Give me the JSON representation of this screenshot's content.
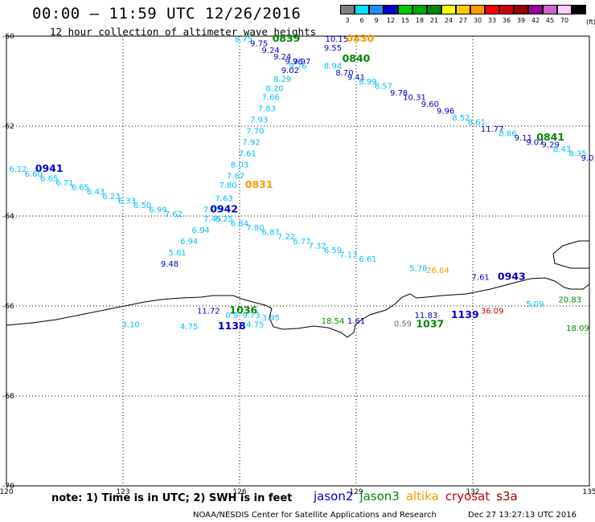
{
  "header": {
    "title": "00:00 – 11:59 UTC 12/26/2016",
    "subtitle": "12 hour collection of altimeter wave heights"
  },
  "colorbar": {
    "labels": [
      "3",
      "6",
      "9",
      "12",
      "15",
      "18",
      "21",
      "24",
      "27",
      "30",
      "33",
      "36",
      "39",
      "42",
      "45",
      "70"
    ],
    "colors": [
      "#7f7f7f",
      "#00e5ff",
      "#1e90ff",
      "#0000cd",
      "#00cc00",
      "#00aa00",
      "#008800",
      "#ffff00",
      "#ffcc00",
      "#ff9900",
      "#ff0000",
      "#cc0000",
      "#990000",
      "#990099",
      "#cc66cc",
      "#ffccff",
      "#000000"
    ],
    "unit": "(ft)"
  },
  "map": {
    "lat_ticks": [
      "-60",
      "-62",
      "-64",
      "-66",
      "-68",
      "-70"
    ],
    "lon_ticks": [
      "120",
      "123",
      "126",
      "129",
      "132",
      "135"
    ],
    "lon_range": [
      120,
      135
    ],
    "lat_range": [
      -60,
      -70
    ]
  },
  "tracks": [
    {
      "text": "8.75",
      "c": "c",
      "lon": 126.1,
      "lat": -60.05
    },
    {
      "text": "0839",
      "c": "g3",
      "lon": 127.2,
      "lat": -60.05,
      "bold": true
    },
    {
      "text": "9.75",
      "c": "b",
      "lon": 126.5,
      "lat": -60.15
    },
    {
      "text": "9.24",
      "c": "b",
      "lon": 126.8,
      "lat": -60.3
    },
    {
      "text": "9.24",
      "c": "b",
      "lon": 127.1,
      "lat": -60.45
    },
    {
      "text": "9.76",
      "c": "b",
      "lon": 127.4,
      "lat": -60.55
    },
    {
      "text": "9.97",
      "c": "b",
      "lon": 127.6,
      "lat": -60.55
    },
    {
      "text": "9.76",
      "c": "c",
      "lon": 127.5,
      "lat": -60.65
    },
    {
      "text": "9.02",
      "c": "b",
      "lon": 127.3,
      "lat": -60.75
    },
    {
      "text": "8.29",
      "c": "c",
      "lon": 127.1,
      "lat": -60.95
    },
    {
      "text": "8.20",
      "c": "c",
      "lon": 126.9,
      "lat": -61.15
    },
    {
      "text": "7.66",
      "c": "c",
      "lon": 126.8,
      "lat": -61.35
    },
    {
      "text": "7.83",
      "c": "c",
      "lon": 126.7,
      "lat": -61.6
    },
    {
      "text": "7.93",
      "c": "c",
      "lon": 126.5,
      "lat": -61.85
    },
    {
      "text": "7.70",
      "c": "c",
      "lon": 126.4,
      "lat": -62.1
    },
    {
      "text": "7.92",
      "c": "c",
      "lon": 126.3,
      "lat": -62.35
    },
    {
      "text": "7.61",
      "c": "c",
      "lon": 126.2,
      "lat": -62.6
    },
    {
      "text": "8.03",
      "c": "c",
      "lon": 126.0,
      "lat": -62.85
    },
    {
      "text": "7.67",
      "c": "c",
      "lon": 125.9,
      "lat": -63.1
    },
    {
      "text": "7.80",
      "c": "c",
      "lon": 125.7,
      "lat": -63.3
    },
    {
      "text": "0831",
      "c": "al",
      "lon": 126.5,
      "lat": -63.3,
      "bold": true
    },
    {
      "text": "7.63",
      "c": "c",
      "lon": 125.6,
      "lat": -63.6
    },
    {
      "text": "7.95",
      "c": "c",
      "lon": 125.3,
      "lat": -63.85
    },
    {
      "text": "0942",
      "c": "b",
      "lon": 125.6,
      "lat": -63.85,
      "bold": true
    },
    {
      "text": "7.45",
      "c": "c",
      "lon": 125.3,
      "lat": -64.05
    },
    {
      "text": "6.25",
      "c": "c",
      "lon": 125.6,
      "lat": -64.05
    },
    {
      "text": "6.94",
      "c": "c",
      "lon": 125.0,
      "lat": -64.3
    },
    {
      "text": "6.94",
      "c": "c",
      "lon": 124.7,
      "lat": -64.55
    },
    {
      "text": "5.61",
      "c": "c",
      "lon": 124.4,
      "lat": -64.8
    },
    {
      "text": "9.48",
      "c": "b",
      "lon": 124.2,
      "lat": -65.05
    },
    {
      "text": "10.15",
      "c": "b",
      "lon": 128.5,
      "lat": -60.05
    },
    {
      "text": "0830",
      "c": "al",
      "lon": 129.1,
      "lat": -60.05,
      "bold": true
    },
    {
      "text": "9.55",
      "c": "b",
      "lon": 128.4,
      "lat": -60.25
    },
    {
      "text": "0840",
      "c": "g3",
      "lon": 129.0,
      "lat": -60.5,
      "bold": true
    },
    {
      "text": "8.94",
      "c": "c",
      "lon": 128.4,
      "lat": -60.65
    },
    {
      "text": "8.70",
      "c": "b",
      "lon": 128.7,
      "lat": -60.8
    },
    {
      "text": "9.41",
      "c": "b",
      "lon": 129.0,
      "lat": -60.9
    },
    {
      "text": "8.99",
      "c": "c",
      "lon": 129.3,
      "lat": -61.0
    },
    {
      "text": "8.57",
      "c": "c",
      "lon": 129.7,
      "lat": -61.1
    },
    {
      "text": "9.78",
      "c": "b",
      "lon": 130.1,
      "lat": -61.25
    },
    {
      "text": "10.31",
      "c": "b",
      "lon": 130.5,
      "lat": -61.35
    },
    {
      "text": "9.60",
      "c": "b",
      "lon": 130.9,
      "lat": -61.5
    },
    {
      "text": "9.96",
      "c": "b",
      "lon": 131.3,
      "lat": -61.65
    },
    {
      "text": "8.52",
      "c": "c",
      "lon": 131.7,
      "lat": -61.8
    },
    {
      "text": "8.61",
      "c": "c",
      "lon": 132.1,
      "lat": -61.9
    },
    {
      "text": "11.77",
      "c": "b",
      "lon": 132.5,
      "lat": -62.05
    },
    {
      "text": "8.66",
      "c": "c",
      "lon": 132.9,
      "lat": -62.15
    },
    {
      "text": "9.11",
      "c": "b",
      "lon": 133.3,
      "lat": -62.25
    },
    {
      "text": "9.07",
      "c": "b",
      "lon": 133.6,
      "lat": -62.35
    },
    {
      "text": "0841",
      "c": "g3",
      "lon": 134.0,
      "lat": -62.25,
      "bold": true
    },
    {
      "text": "9.29",
      "c": "b",
      "lon": 134.0,
      "lat": -62.4
    },
    {
      "text": "8.43",
      "c": "c",
      "lon": 134.3,
      "lat": -62.5
    },
    {
      "text": "8.35",
      "c": "c",
      "lon": 134.7,
      "lat": -62.6
    },
    {
      "text": "9.0",
      "c": "b",
      "lon": 134.95,
      "lat": -62.7
    },
    {
      "text": "6.12",
      "c": "c",
      "lon": 120.3,
      "lat": -62.95
    },
    {
      "text": "0941",
      "c": "b",
      "lon": 121.1,
      "lat": -62.95,
      "bold": true
    },
    {
      "text": "6.60",
      "c": "c",
      "lon": 120.7,
      "lat": -63.05
    },
    {
      "text": "6.65",
      "c": "c",
      "lon": 121.1,
      "lat": -63.15
    },
    {
      "text": "6.71",
      "c": "c",
      "lon": 121.5,
      "lat": -63.25
    },
    {
      "text": "6.65",
      "c": "c",
      "lon": 121.9,
      "lat": -63.35
    },
    {
      "text": "6.43",
      "c": "c",
      "lon": 122.3,
      "lat": -63.45
    },
    {
      "text": "6.23",
      "c": "c",
      "lon": 122.7,
      "lat": -63.55
    },
    {
      "text": "6.33",
      "c": "c",
      "lon": 123.1,
      "lat": -63.65
    },
    {
      "text": "6.50",
      "c": "c",
      "lon": 123.5,
      "lat": -63.75
    },
    {
      "text": "6.99",
      "c": "c",
      "lon": 123.9,
      "lat": -63.85
    },
    {
      "text": "7.62",
      "c": "c",
      "lon": 124.3,
      "lat": -63.95
    },
    {
      "text": "6.84",
      "c": "c",
      "lon": 126.0,
      "lat": -64.15
    },
    {
      "text": "7.80",
      "c": "c",
      "lon": 126.4,
      "lat": -64.25
    },
    {
      "text": "6.87",
      "c": "c",
      "lon": 126.8,
      "lat": -64.35
    },
    {
      "text": "7.22",
      "c": "c",
      "lon": 127.2,
      "lat": -64.45
    },
    {
      "text": "6.77",
      "c": "c",
      "lon": 127.6,
      "lat": -64.55
    },
    {
      "text": "7.32",
      "c": "c",
      "lon": 128.0,
      "lat": -64.65
    },
    {
      "text": "6.59",
      "c": "c",
      "lon": 128.4,
      "lat": -64.75
    },
    {
      "text": "7.13",
      "c": "c",
      "lon": 128.8,
      "lat": -64.85
    },
    {
      "text": "6.61",
      "c": "c",
      "lon": 129.3,
      "lat": -64.95
    },
    {
      "text": "5.78",
      "c": "c",
      "lon": 130.6,
      "lat": -65.15
    },
    {
      "text": "26.84",
      "c": "al",
      "lon": 131.1,
      "lat": -65.2
    },
    {
      "text": "7.61",
      "c": "b",
      "lon": 132.2,
      "lat": -65.35
    },
    {
      "text": "0943",
      "c": "b",
      "lon": 133.0,
      "lat": -65.35,
      "bold": true
    },
    {
      "text": "5.09",
      "c": "c",
      "lon": 133.6,
      "lat": -65.95
    },
    {
      "text": "20.83",
      "c": "g3",
      "lon": 134.5,
      "lat": -65.85
    },
    {
      "text": "36.09",
      "c": "cr",
      "lon": 132.5,
      "lat": -66.1
    },
    {
      "text": "1139",
      "c": "b",
      "lon": 131.8,
      "lat": -66.2,
      "bold": true
    },
    {
      "text": "11.83",
      "c": "b",
      "lon": 130.8,
      "lat": -66.2
    },
    {
      "text": "18.09",
      "c": "g3",
      "lon": 134.7,
      "lat": -66.48
    },
    {
      "text": "11.72",
      "c": "b",
      "lon": 125.2,
      "lat": -66.1
    },
    {
      "text": "1036",
      "c": "g3",
      "lon": 126.1,
      "lat": -66.1,
      "bold": true
    },
    {
      "text": "0.9",
      "c": "c",
      "lon": 125.8,
      "lat": -66.2
    },
    {
      "text": "9.73",
      "c": "c",
      "lon": 126.3,
      "lat": -66.2
    },
    {
      "text": "3.95",
      "c": "c",
      "lon": 126.8,
      "lat": -66.25
    },
    {
      "text": "3.10",
      "c": "c",
      "lon": 123.2,
      "lat": -66.4
    },
    {
      "text": "4.75",
      "c": "c",
      "lon": 124.7,
      "lat": -66.45
    },
    {
      "text": "1138",
      "c": "b",
      "lon": 125.8,
      "lat": -66.45,
      "bold": true
    },
    {
      "text": "4.75",
      "c": "c",
      "lon": 126.4,
      "lat": -66.4
    },
    {
      "text": "18.54",
      "c": "g3",
      "lon": 128.4,
      "lat": -66.32
    },
    {
      "text": "1.61",
      "c": "b",
      "lon": 129.0,
      "lat": -66.32
    },
    {
      "text": "0.59",
      "c": "gr",
      "lon": 130.2,
      "lat": -66.38
    },
    {
      "text": "1037",
      "c": "g3",
      "lon": 130.9,
      "lat": -66.4,
      "bold": true
    }
  ],
  "footer": {
    "note": "note: 1) Time is in UTC; 2) SWH is in feet",
    "legend": [
      {
        "label": "jason2",
        "color": "#0000cd"
      },
      {
        "label": "jason3",
        "color": "#008800"
      },
      {
        "label": "altika",
        "color": "#ff9900"
      },
      {
        "label": "cryosat",
        "color": "#cc0000"
      },
      {
        "label": "s3a",
        "color": "#990000"
      }
    ],
    "credit": "NOAA/NESDIS Center for Satellite Applications and Research",
    "datetime": "Dec 27 13:27:13 UTC 2016"
  }
}
